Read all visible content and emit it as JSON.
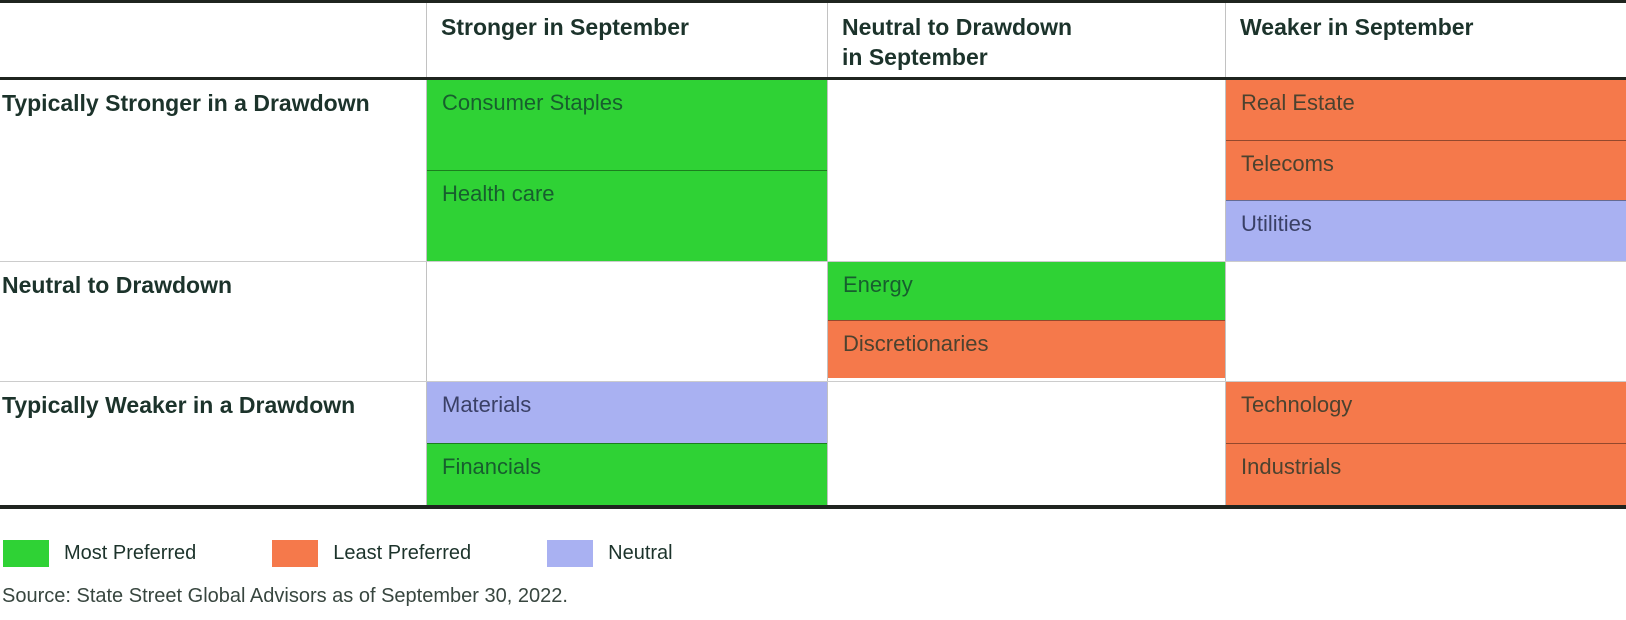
{
  "colors": {
    "most-preferred": "#2fd235",
    "least-preferred": "#f5794b",
    "neutral": "#a9b1f2",
    "dark-line": "#1f241f",
    "grid-line": "#cccccc",
    "col-line": "#c2c2c2",
    "header-text": "#1c332b",
    "text-on-green": "#175e2e",
    "text-on-orange": "#4c422f",
    "text-on-neutral": "#3a4066",
    "source-text": "#38463f"
  },
  "chart_data": {
    "type": "table",
    "columns": [
      "",
      "Stronger in September",
      "Neutral to Drawdown in September",
      "Weaker in September"
    ],
    "rows": [
      {
        "label": "Typically Stronger in a Drawdown",
        "cells": [
          {
            "column": "Stronger in September",
            "items": [
              {
                "sector": "Consumer Staples",
                "rating": "Most Preferred",
                "status": "most-preferred"
              },
              {
                "sector": "Health care",
                "rating": "Most Preferred",
                "status": "most-preferred"
              }
            ]
          },
          {
            "column": "Neutral to Drawdown in September",
            "items": []
          },
          {
            "column": "Weaker in September",
            "items": [
              {
                "sector": "Real Estate",
                "rating": "Least Preferred",
                "status": "least-preferred"
              },
              {
                "sector": "Telecoms",
                "rating": "Least Preferred",
                "status": "least-preferred"
              },
              {
                "sector": "Utilities",
                "rating": "Neutral",
                "status": "neutral"
              }
            ]
          }
        ]
      },
      {
        "label": "Neutral to Drawdown",
        "cells": [
          {
            "column": "Stronger in September",
            "items": []
          },
          {
            "column": "Neutral to Drawdown in September",
            "items": [
              {
                "sector": "Energy",
                "rating": "Most Preferred",
                "status": "most-preferred"
              },
              {
                "sector": "Discretionaries",
                "rating": "Least Preferred",
                "status": "least-preferred"
              }
            ]
          },
          {
            "column": "Weaker in September",
            "items": []
          }
        ]
      },
      {
        "label": "Typically Weaker in a Drawdown",
        "cells": [
          {
            "column": "Stronger in September",
            "items": [
              {
                "sector": "Materials",
                "rating": "Neutral",
                "status": "neutral"
              },
              {
                "sector": "Financials",
                "rating": "Most Preferred",
                "status": "most-preferred"
              }
            ]
          },
          {
            "column": "Neutral to Drawdown in September",
            "items": []
          },
          {
            "column": "Weaker in September",
            "items": [
              {
                "sector": "Technology",
                "rating": "Least Preferred",
                "status": "least-preferred"
              },
              {
                "sector": "Industrials",
                "rating": "Least Preferred",
                "status": "least-preferred"
              }
            ]
          }
        ]
      }
    ],
    "legend": [
      {
        "label": "Most Preferred",
        "status": "most-preferred",
        "color": "#2fd235"
      },
      {
        "label": "Least Preferred",
        "status": "least-preferred",
        "color": "#f5794b"
      },
      {
        "label": "Neutral",
        "status": "neutral",
        "color": "#a9b1f2"
      }
    ],
    "source": "Source: State Street Global Advisors as of September 30, 2022."
  }
}
